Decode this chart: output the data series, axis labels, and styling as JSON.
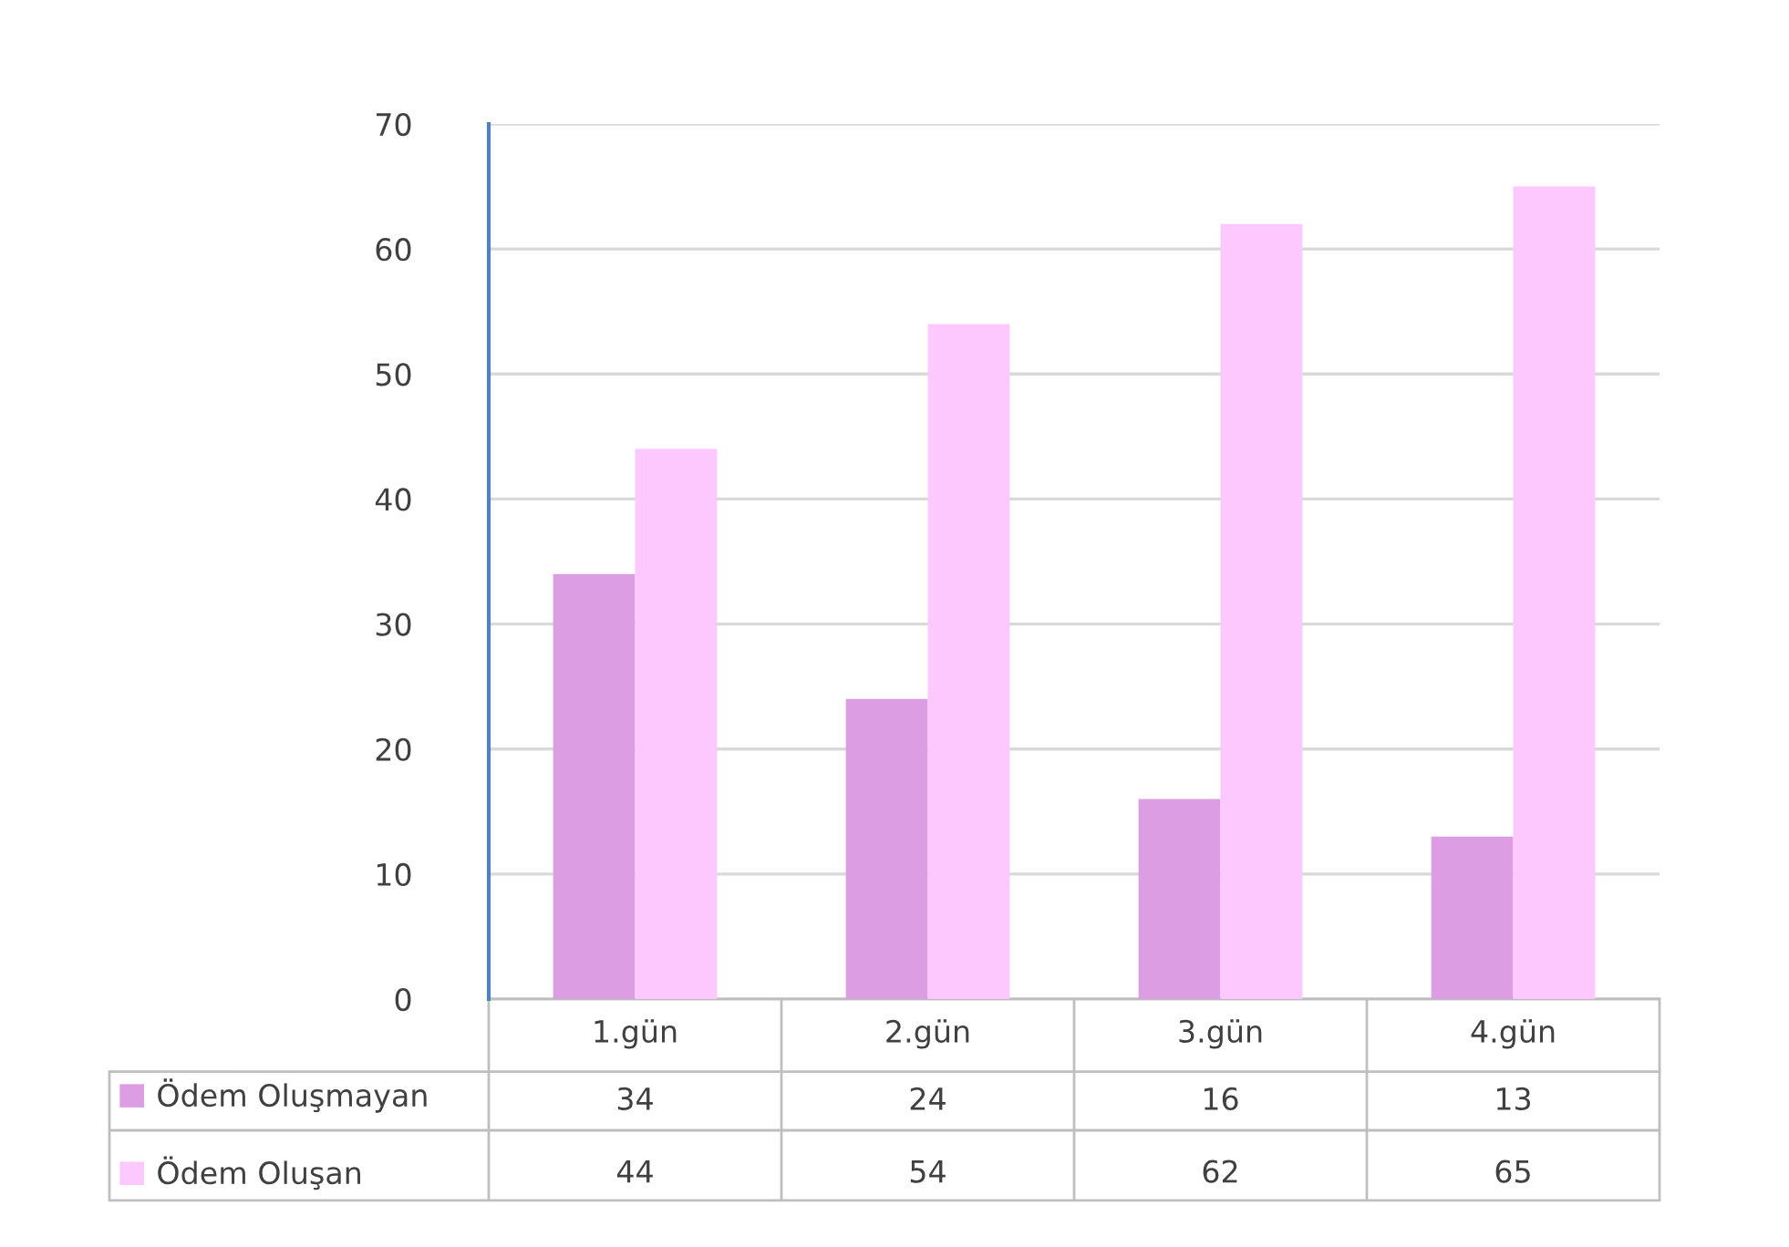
{
  "chart_data": {
    "type": "bar",
    "categories": [
      "1.gün",
      "2.gün",
      "3.gün",
      "4.gün"
    ],
    "series": [
      {
        "name": "Ödem Oluşmayan",
        "color": "#dd9de3",
        "values": [
          34,
          24,
          16,
          13
        ]
      },
      {
        "name": "Ödem Oluşan",
        "color": "#fdc8fd",
        "values": [
          44,
          54,
          62,
          65
        ]
      }
    ],
    "ylim": [
      0,
      70
    ],
    "yticks": [
      0,
      10,
      20,
      30,
      40,
      50,
      60,
      70
    ],
    "grid": "y",
    "legend": "bottom",
    "data_labels": true
  }
}
